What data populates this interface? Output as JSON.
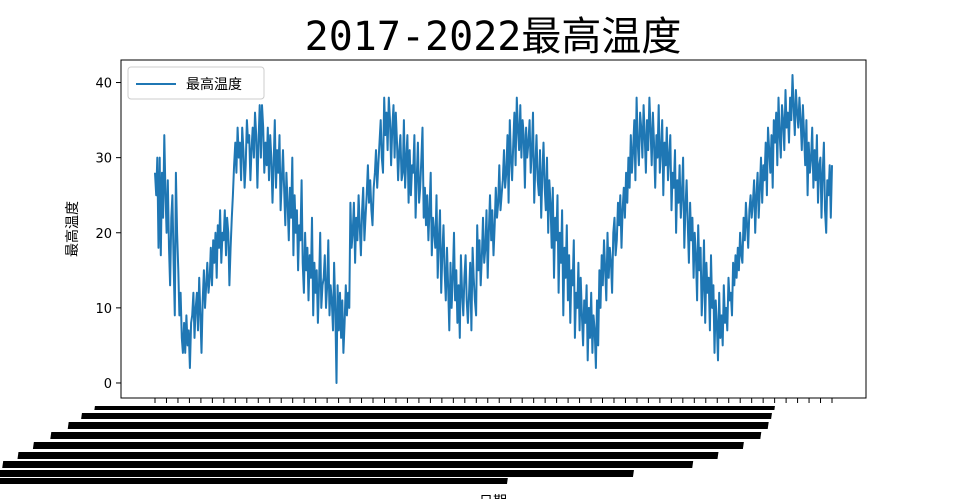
{
  "chart_data": {
    "type": "line",
    "title": "2017-2022最高温度",
    "xlabel": "日期",
    "ylabel": "最高温度",
    "ylim": [
      -2,
      43
    ],
    "yticks": [
      0,
      10,
      20,
      30,
      40
    ],
    "grid": false,
    "legend_position": "upper-left",
    "line_color": "#1f77b4",
    "x_tick_labels_illegible": true,
    "series": [
      {
        "name": "最高温度",
        "values": [
          28,
          25,
          30,
          18,
          30,
          17,
          28,
          22,
          33,
          25,
          20,
          27,
          18,
          13,
          22,
          25,
          16,
          9,
          28,
          20,
          15,
          9,
          12,
          6,
          4,
          8,
          4,
          9,
          5,
          7,
          2,
          8,
          9,
          12,
          6,
          10,
          12,
          7,
          14,
          9,
          4,
          11,
          15,
          10,
          13,
          16,
          12,
          14,
          18,
          13,
          19,
          16,
          20,
          14,
          21,
          18,
          23,
          16,
          20,
          19,
          23,
          17,
          22,
          20,
          13,
          18,
          22,
          25,
          29,
          32,
          28,
          34,
          30,
          32,
          27,
          34,
          31,
          26,
          29,
          35,
          32,
          33,
          27,
          31,
          34,
          30,
          36,
          33,
          26,
          32,
          37,
          30,
          37,
          34,
          28,
          32,
          29,
          34,
          27,
          33,
          30,
          24,
          29,
          35,
          26,
          31,
          28,
          33,
          23,
          27,
          31,
          26,
          21,
          28,
          24,
          19,
          26,
          22,
          30,
          17,
          25,
          20,
          23,
          15,
          21,
          19,
          27,
          16,
          12,
          20,
          15,
          18,
          11,
          17,
          14,
          22,
          9,
          16,
          12,
          15,
          8,
          13,
          20,
          10,
          13,
          14,
          17,
          10,
          13,
          19,
          9,
          13,
          11,
          7,
          16,
          10,
          0,
          13,
          7,
          12,
          6,
          11,
          4,
          8,
          13,
          9,
          12,
          10,
          24,
          18,
          20,
          24,
          16,
          22,
          19,
          25,
          21,
          17,
          23,
          26,
          19,
          22,
          25,
          29,
          24,
          27,
          23,
          21,
          26,
          28,
          31,
          26,
          29,
          32,
          35,
          30,
          28,
          38,
          33,
          36,
          31,
          38,
          35,
          29,
          34,
          37,
          30,
          36,
          32,
          27,
          31,
          33,
          27,
          28,
          35,
          26,
          30,
          33,
          24,
          31,
          25,
          29,
          28,
          33,
          22,
          27,
          32,
          24,
          26,
          30,
          34,
          22,
          26,
          21,
          25,
          19,
          23,
          28,
          17,
          22,
          20,
          18,
          25,
          14,
          19,
          23,
          12,
          17,
          21,
          15,
          11,
          18,
          13,
          7,
          16,
          10,
          14,
          20,
          11,
          15,
          8,
          13,
          6,
          17,
          12,
          9,
          14,
          17,
          11,
          8,
          12,
          16,
          7,
          18,
          14,
          11,
          9,
          21,
          15,
          19,
          13,
          17,
          22,
          16,
          18,
          23,
          14,
          20,
          25,
          19,
          23,
          17,
          21,
          26,
          22,
          24,
          29,
          23,
          25,
          27,
          31,
          26,
          28,
          33,
          24,
          35,
          30,
          27,
          32,
          36,
          29,
          38,
          34,
          31,
          37,
          30,
          35,
          33,
          26,
          34,
          30,
          32,
          35,
          28,
          31,
          36,
          24,
          29,
          33,
          27,
          25,
          31,
          22,
          28,
          32,
          26,
          23,
          30,
          20,
          27,
          24,
          18,
          26,
          14,
          22,
          19,
          25,
          12,
          20,
          16,
          23,
          9,
          18,
          14,
          21,
          11,
          17,
          8,
          15,
          13,
          19,
          6,
          12,
          10,
          16,
          7,
          14,
          9,
          5,
          11,
          8,
          13,
          3,
          10,
          6,
          12,
          4,
          9,
          7,
          2,
          11,
          5,
          15,
          10,
          17,
          13,
          19,
          15,
          11,
          20,
          14,
          18,
          16,
          12,
          20,
          22,
          17,
          19,
          24,
          21,
          25,
          18,
          23,
          26,
          22,
          28,
          24,
          30,
          26,
          33,
          28,
          31,
          35,
          27,
          38,
          32,
          29,
          36,
          34,
          30,
          37,
          33,
          28,
          35,
          31,
          38,
          34,
          29,
          36,
          32,
          26,
          33,
          30,
          37,
          28,
          31,
          35,
          25,
          32,
          29,
          34,
          27,
          30,
          33,
          23,
          28,
          26,
          31,
          20,
          27,
          24,
          29,
          22,
          25,
          30,
          18,
          23,
          27,
          21,
          16,
          24,
          19,
          22,
          14,
          20,
          17,
          11,
          21,
          15,
          18,
          9,
          13,
          19,
          8,
          16,
          12,
          14,
          7,
          17,
          10,
          13,
          4,
          11,
          8,
          3,
          12,
          6,
          9,
          5,
          13,
          8,
          10,
          7,
          14,
          11,
          12,
          9,
          16,
          13,
          17,
          14,
          18,
          15,
          20,
          17,
          16,
          22,
          19,
          24,
          21,
          18,
          23,
          25,
          22,
          24,
          27,
          20,
          25,
          28,
          22,
          26,
          30,
          24,
          29,
          27,
          32,
          25,
          34,
          31,
          28,
          33,
          26,
          35,
          32,
          36,
          29,
          38,
          33,
          30,
          37,
          35,
          31,
          39,
          34,
          36,
          32,
          38,
          35,
          41,
          37,
          33,
          39,
          36,
          34,
          38,
          35,
          31,
          37,
          33,
          29,
          35,
          25,
          32,
          28,
          30,
          34,
          26,
          31,
          27,
          33,
          24,
          29,
          30,
          22,
          28,
          32,
          23,
          20,
          27,
          25,
          29,
          22,
          29
        ]
      }
    ]
  }
}
